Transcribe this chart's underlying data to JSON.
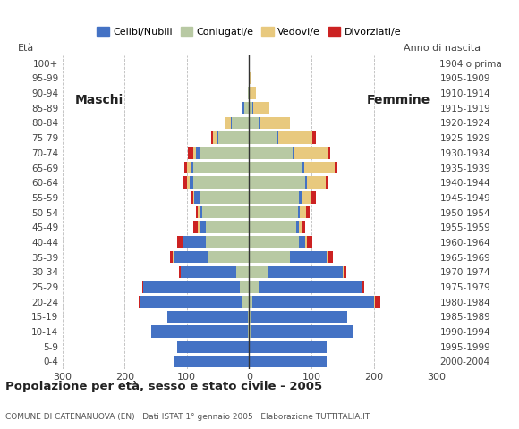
{
  "age_groups": [
    "0-4",
    "5-9",
    "10-14",
    "15-19",
    "20-24",
    "25-29",
    "30-34",
    "35-39",
    "40-44",
    "45-49",
    "50-54",
    "55-59",
    "60-64",
    "65-69",
    "70-74",
    "75-79",
    "80-84",
    "85-89",
    "90-94",
    "95-99",
    "100+"
  ],
  "birth_years": [
    "2000-2004",
    "1995-1999",
    "1990-1994",
    "1985-1989",
    "1980-1984",
    "1975-1979",
    "1970-1974",
    "1965-1969",
    "1960-1964",
    "1955-1959",
    "1950-1954",
    "1945-1949",
    "1940-1944",
    "1935-1939",
    "1930-1934",
    "1925-1929",
    "1920-1924",
    "1915-1919",
    "1910-1914",
    "1905-1909",
    "1904 o prima"
  ],
  "male_celibi": [
    120,
    115,
    155,
    130,
    165,
    155,
    90,
    55,
    35,
    10,
    5,
    8,
    5,
    4,
    5,
    3,
    2,
    2,
    0,
    0,
    0
  ],
  "male_coniugati": [
    0,
    0,
    2,
    2,
    10,
    15,
    20,
    65,
    70,
    70,
    75,
    80,
    90,
    90,
    80,
    50,
    28,
    8,
    2,
    0,
    0
  ],
  "male_vedovi": [
    0,
    0,
    0,
    0,
    0,
    0,
    0,
    2,
    2,
    2,
    2,
    2,
    5,
    5,
    5,
    5,
    8,
    2,
    0,
    0,
    0
  ],
  "male_divorziati": [
    0,
    0,
    0,
    0,
    2,
    2,
    2,
    5,
    8,
    8,
    4,
    4,
    5,
    5,
    8,
    3,
    0,
    0,
    0,
    0,
    0
  ],
  "female_nubili": [
    125,
    125,
    165,
    155,
    195,
    165,
    120,
    60,
    10,
    5,
    4,
    4,
    3,
    3,
    2,
    2,
    2,
    2,
    0,
    0,
    0
  ],
  "female_coniugate": [
    0,
    0,
    2,
    2,
    5,
    15,
    30,
    65,
    80,
    75,
    78,
    80,
    90,
    85,
    70,
    45,
    15,
    5,
    1,
    0,
    0
  ],
  "female_vedove": [
    0,
    0,
    0,
    0,
    2,
    2,
    2,
    2,
    3,
    5,
    10,
    15,
    30,
    50,
    55,
    55,
    48,
    25,
    10,
    2,
    0
  ],
  "female_divorziate": [
    0,
    0,
    0,
    0,
    8,
    3,
    4,
    8,
    8,
    5,
    5,
    8,
    4,
    3,
    3,
    5,
    0,
    0,
    0,
    0,
    0
  ],
  "colors_celibi": "#4472c4",
  "colors_coniugati": "#b8c9a3",
  "colors_vedovi": "#e8c97e",
  "colors_divorziati": "#cc2222",
  "xlim": 300,
  "xticks": [
    -300,
    -200,
    -100,
    0,
    100,
    200,
    300
  ],
  "xticklabels": [
    "300",
    "200",
    "100",
    "0",
    "100",
    "200",
    "300"
  ],
  "title": "Popolazione per età, sesso e stato civile - 2005",
  "subtitle": "COMUNE DI CATENANUOVA (EN) · Dati ISTAT 1° gennaio 2005 · Elaborazione TUTTITALIA.IT",
  "ylabel_eta": "Età",
  "ylabel_anno": "Anno di nascita",
  "label_maschi": "Maschi",
  "label_femmine": "Femmine",
  "legend_labels": [
    "Celibi/Nubili",
    "Coniugati/e",
    "Vedovi/e",
    "Divorziati/e"
  ],
  "bg_color": "#ffffff",
  "grid_color": "#bbbbbb",
  "bar_height": 0.82
}
